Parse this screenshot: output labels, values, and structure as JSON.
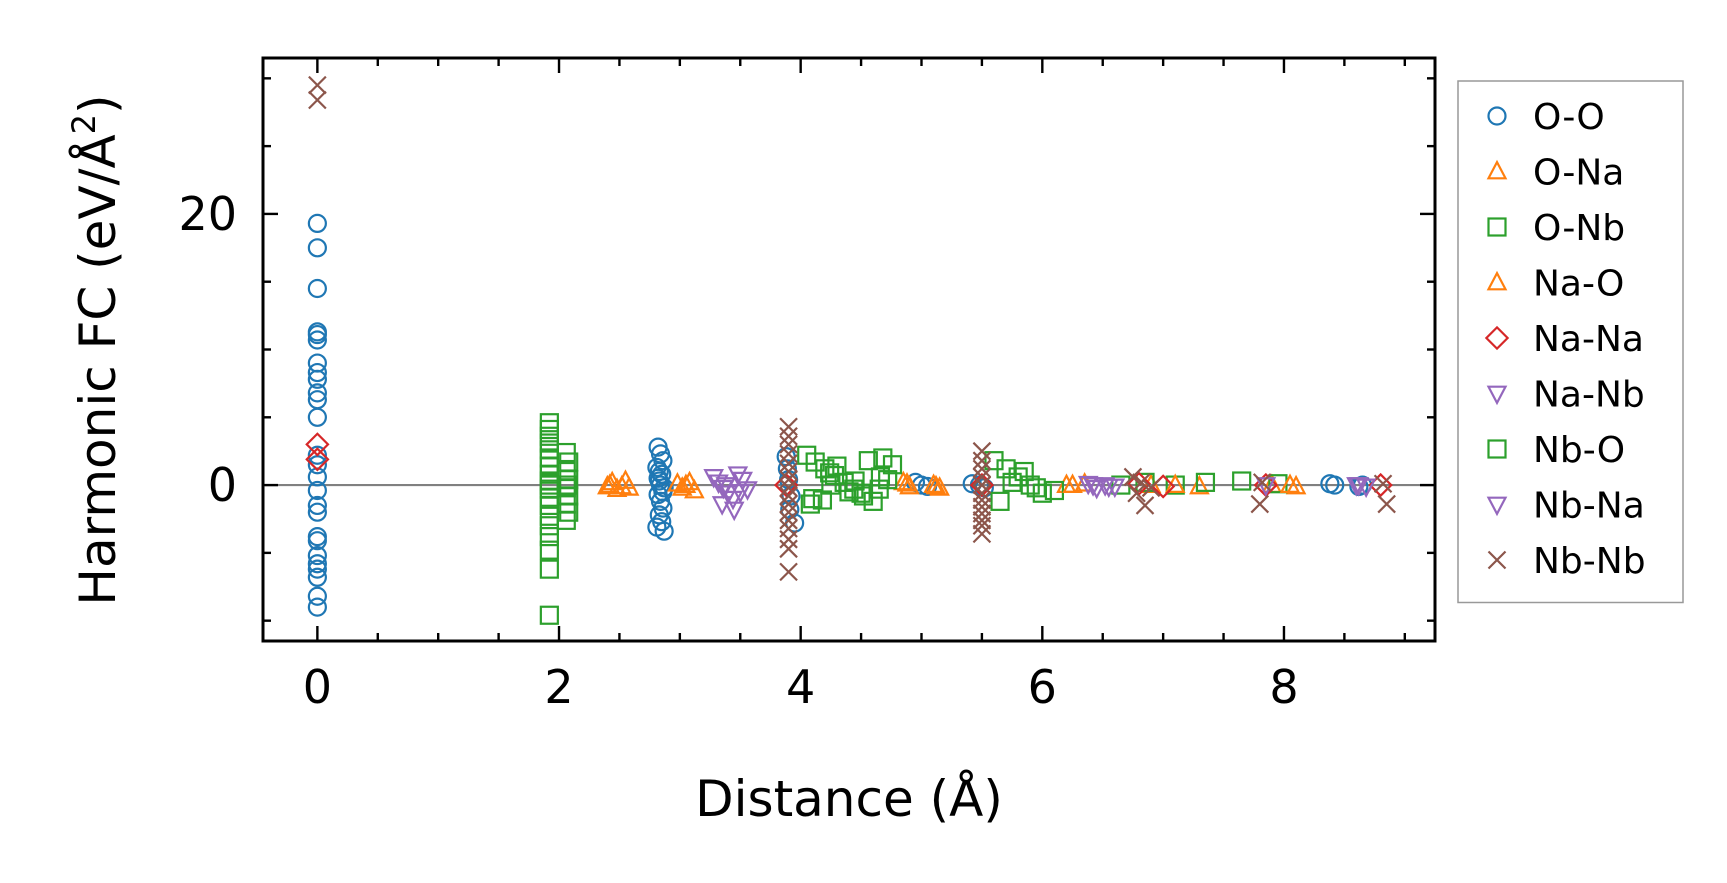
{
  "chart_data": {
    "type": "scatter",
    "title": "",
    "xlabel": "Distance (Å)",
    "ylabel_main": "Harmonic FC (eV/Å",
    "ylabel_sup": "2",
    "ylabel_end": ")",
    "xlim": [
      -0.45,
      9.25
    ],
    "ylim": [
      -11.5,
      31.5
    ],
    "xticks": [
      0,
      2,
      4,
      6,
      8
    ],
    "xtick_labels": [
      "0",
      "2",
      "4",
      "6",
      "8"
    ],
    "yticks": [
      0,
      20
    ],
    "ytick_labels": [
      "0",
      "20"
    ],
    "x_minor_step": 0.5,
    "y_minor_step": 5,
    "zero_line": true,
    "grid": false,
    "legend_position": "outside-right",
    "series": [
      {
        "name": "O-O",
        "marker": "circle",
        "color": "#1f77b4",
        "x": [
          0,
          0,
          0,
          0,
          0,
          0,
          0,
          0,
          0,
          0,
          0,
          0,
          0,
          0,
          0,
          0,
          0,
          0,
          0,
          0,
          0,
          0,
          0,
          0,
          0,
          0,
          2.82,
          2.84,
          2.86,
          2.81,
          2.85,
          2.83,
          2.87,
          2.82,
          2.84,
          2.86,
          2.83,
          2.85,
          2.81,
          2.87,
          2.84,
          2.82,
          2.86,
          2.83,
          3.88,
          3.9,
          3.92,
          3.95,
          3.89,
          3.91,
          4.95,
          5.0,
          5.05,
          5.42,
          5.48,
          5.52,
          8.38,
          8.42,
          8.62,
          8.65
        ],
        "y": [
          19.3,
          17.5,
          14.5,
          11.3,
          11.1,
          10.7,
          9.0,
          8.3,
          7.8,
          6.8,
          6.3,
          5.0,
          2.2,
          1.5,
          0.6,
          -0.4,
          -1.5,
          -2.0,
          -3.8,
          -4.1,
          -5.2,
          -5.8,
          -6.2,
          -6.8,
          -8.2,
          -9.0,
          2.8,
          2.3,
          1.8,
          1.3,
          0.8,
          0.3,
          -0.2,
          -0.7,
          -1.2,
          -1.7,
          -2.2,
          -2.7,
          -3.1,
          -3.4,
          0.0,
          0.5,
          -0.5,
          1.0,
          2.1,
          0.4,
          -0.8,
          -2.8,
          1.2,
          -1.8,
          0.2,
          0.0,
          -0.1,
          0.1,
          0.0,
          -0.2,
          0.1,
          0.0,
          -0.1,
          0.0
        ]
      },
      {
        "name": "O-Na",
        "marker": "triangle-up",
        "color": "#ff7f0e",
        "x": [
          2.4,
          2.44,
          2.48,
          2.55,
          2.58,
          2.98,
          3.02,
          3.08,
          3.12,
          4.85,
          4.9,
          5.1,
          5.15,
          6.2,
          6.35,
          6.9,
          7.3,
          7.9,
          8.1
        ],
        "y": [
          -0.1,
          0.2,
          -0.3,
          0.3,
          -0.2,
          0.1,
          -0.2,
          0.2,
          -0.4,
          0.2,
          -0.1,
          0.0,
          -0.2,
          0.0,
          0.1,
          0.0,
          -0.1,
          0.0,
          -0.1
        ]
      },
      {
        "name": "O-Nb",
        "marker": "square",
        "color": "#2ca02c",
        "x": [
          1.92,
          1.92,
          1.92,
          1.92,
          1.92,
          1.92,
          1.92,
          1.92,
          1.92,
          1.92,
          1.92,
          1.92,
          1.92,
          1.92,
          1.92,
          1.92,
          1.92,
          1.92,
          2.06,
          2.08,
          2.06,
          2.08,
          2.06,
          2.08,
          2.06,
          2.08,
          2.06,
          4.05,
          4.12,
          4.2,
          4.28,
          4.36,
          4.44,
          4.52,
          4.6,
          4.68,
          4.76,
          4.1,
          4.24,
          4.4,
          4.56,
          4.72,
          4.08,
          4.3,
          4.5,
          4.66,
          4.18,
          5.6,
          5.7,
          5.8,
          5.9,
          6.0,
          5.65,
          5.85,
          6.1,
          6.65,
          6.85,
          7.1,
          7.35,
          7.65,
          7.95
        ],
        "y": [
          4.6,
          4.1,
          3.6,
          3.1,
          2.6,
          2.0,
          1.4,
          0.8,
          0.3,
          -0.3,
          -0.9,
          -1.5,
          -2.3,
          -3.0,
          -3.8,
          -4.8,
          -6.2,
          -9.6,
          2.4,
          1.7,
          1.0,
          0.4,
          -0.2,
          -0.8,
          -1.4,
          -2.0,
          -2.6,
          2.2,
          1.7,
          1.2,
          0.7,
          0.2,
          -0.3,
          -0.8,
          -1.2,
          2.0,
          1.5,
          -1.0,
          0.9,
          -0.5,
          1.8,
          0.4,
          -1.4,
          1.4,
          -0.6,
          0.6,
          -1.1,
          1.8,
          1.2,
          0.6,
          0.0,
          -0.6,
          -1.2,
          1.0,
          -0.4,
          0.0,
          0.2,
          0.0,
          0.2,
          0.3,
          0.1
        ]
      },
      {
        "name": "Na-O",
        "marker": "triangle-up",
        "color": "#ff7f0e",
        "x": [
          2.42,
          2.52,
          3.05,
          4.88,
          5.12,
          6.25,
          7.1,
          8.05
        ],
        "y": [
          0.0,
          -0.1,
          0.0,
          0.1,
          -0.1,
          0.0,
          0.0,
          0.0
        ]
      },
      {
        "name": "Na-Na",
        "marker": "diamond",
        "color": "#d62728",
        "x": [
          0,
          0,
          3.88,
          5.5,
          6.8,
          7.0,
          7.85,
          8.8
        ],
        "y": [
          3.0,
          1.9,
          0.0,
          0.0,
          0.1,
          -0.1,
          0.0,
          0.0
        ]
      },
      {
        "name": "Na-Nb",
        "marker": "triangle-down",
        "color": "#9467bd",
        "x": [
          3.28,
          3.32,
          3.36,
          3.4,
          3.44,
          3.48,
          3.52,
          3.56,
          3.35,
          3.45,
          6.38,
          6.45,
          6.52,
          6.6,
          7.85,
          8.6,
          8.68
        ],
        "y": [
          0.6,
          0.2,
          -0.2,
          -0.6,
          -1.0,
          0.8,
          0.4,
          -0.3,
          -1.4,
          -1.8,
          0.1,
          -0.2,
          0.0,
          -0.1,
          0.0,
          0.0,
          -0.1
        ]
      },
      {
        "name": "Nb-O",
        "marker": "square",
        "color": "#2ca02c",
        "x": [
          1.92,
          2.07,
          4.25,
          4.45,
          4.65,
          5.75,
          5.95
        ],
        "y": [
          0.0,
          0.0,
          0.0,
          0.3,
          -0.3,
          0.2,
          -0.2
        ]
      },
      {
        "name": "Nb-Na",
        "marker": "triangle-down",
        "color": "#9467bd",
        "x": [
          3.38,
          3.5,
          6.42,
          6.55,
          8.62
        ],
        "y": [
          0.0,
          -0.5,
          0.0,
          -0.1,
          0.0
        ]
      },
      {
        "name": "Nb-Nb",
        "marker": "x",
        "color": "#8c564b",
        "x": [
          0,
          0,
          3.9,
          3.9,
          3.9,
          3.9,
          3.9,
          3.9,
          3.9,
          3.9,
          3.9,
          3.9,
          3.9,
          3.9,
          3.9,
          3.9,
          3.9,
          3.9,
          5.5,
          5.5,
          5.5,
          5.5,
          5.5,
          5.5,
          5.5,
          5.5,
          5.5,
          5.5,
          5.5,
          5.5,
          6.75,
          6.82,
          6.9,
          6.78,
          6.85,
          7.82,
          7.8,
          8.82,
          8.85
        ],
        "y": [
          29.5,
          28.4,
          4.3,
          3.6,
          3.0,
          2.3,
          1.6,
          1.0,
          0.4,
          -0.2,
          -0.8,
          -1.4,
          -2.0,
          -2.6,
          -3.2,
          -4.0,
          -4.7,
          -6.4,
          2.5,
          1.8,
          1.2,
          0.6,
          0.0,
          -0.6,
          -1.1,
          -1.6,
          -2.1,
          -2.6,
          -3.0,
          -3.6,
          0.6,
          0.2,
          -0.2,
          -0.6,
          -1.5,
          0.2,
          -1.4,
          0.1,
          -1.4
        ]
      }
    ]
  }
}
